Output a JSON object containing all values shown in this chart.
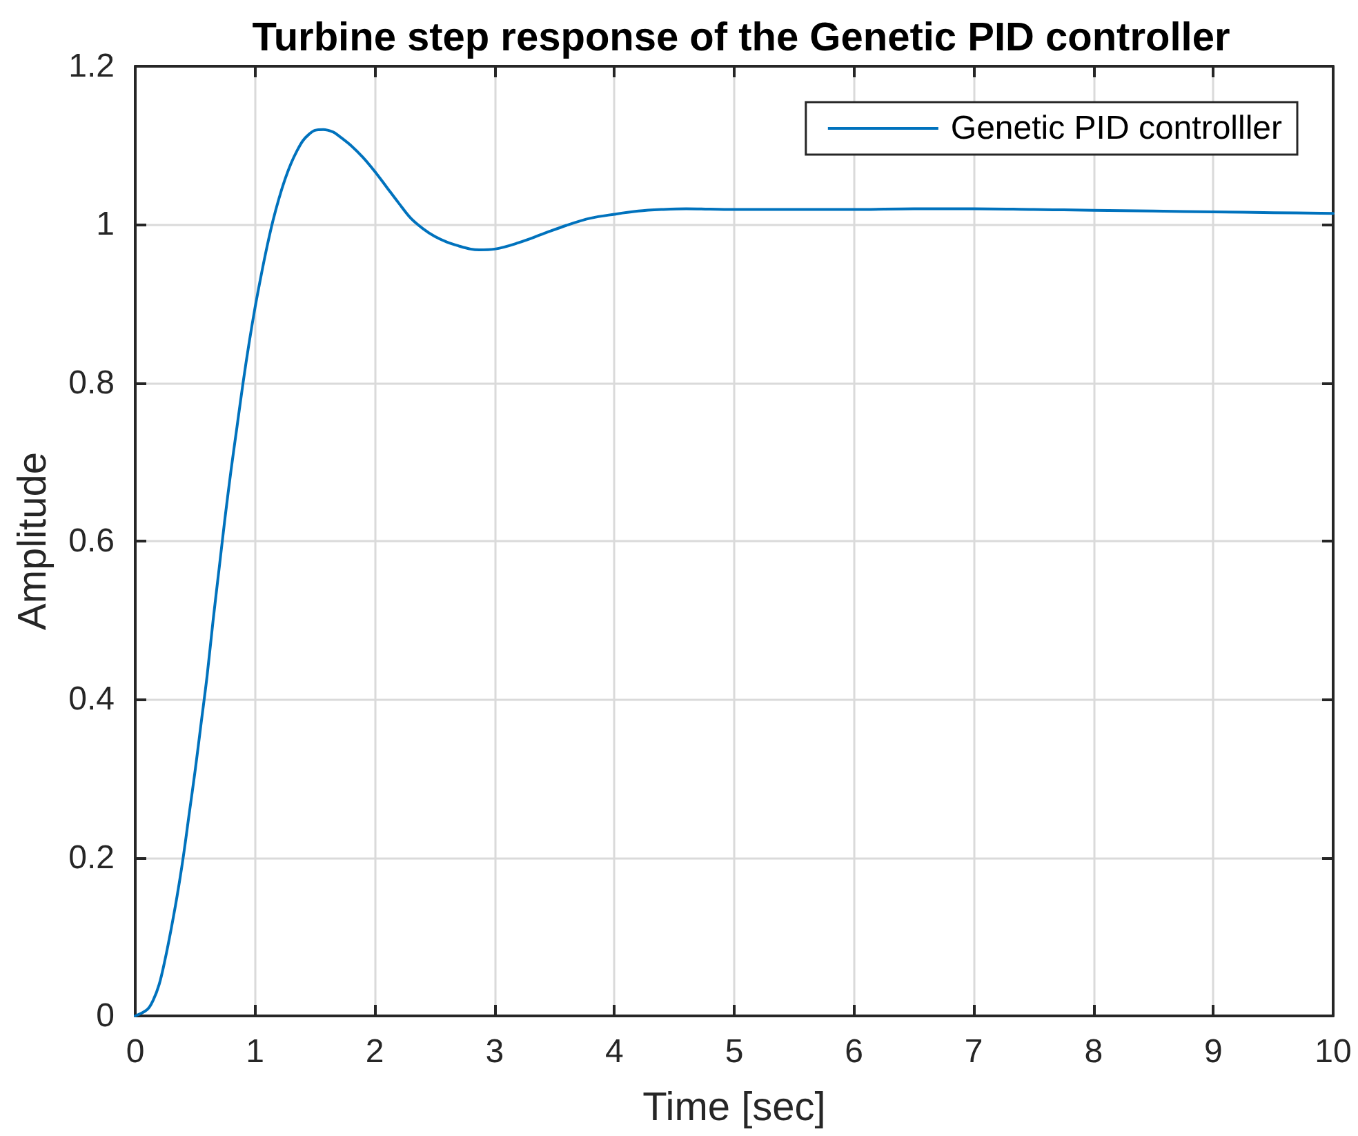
{
  "chart_data": {
    "type": "line",
    "title": "Turbine step response of the Genetic PID controller",
    "xlabel": "Time [sec]",
    "ylabel": "Amplitude",
    "x": [
      0,
      0.1,
      0.15,
      0.2,
      0.25,
      0.3,
      0.35,
      0.4,
      0.45,
      0.5,
      0.55,
      0.6,
      0.65,
      0.7,
      0.75,
      0.8,
      0.85,
      0.9,
      0.95,
      1,
      1.05,
      1.1,
      1.15,
      1.2,
      1.25,
      1.3,
      1.35,
      1.4,
      1.45,
      1.5,
      1.57,
      1.65,
      1.7,
      1.8,
      1.9,
      2,
      2.1,
      2.2,
      2.3,
      2.4,
      2.5,
      2.6,
      2.7,
      2.8,
      2.87,
      3,
      3.2,
      3.4,
      3.6,
      3.8,
      4,
      4.2,
      4.4,
      4.6,
      5,
      5.5,
      6,
      6.5,
      7,
      7.5,
      8,
      8.5,
      9,
      9.5,
      10
    ],
    "series": [
      {
        "name": "Genetic PID controlller",
        "color": "#0072bd",
        "values": [
          0,
          0.008,
          0.02,
          0.04,
          0.072,
          0.11,
          0.152,
          0.2,
          0.255,
          0.31,
          0.37,
          0.43,
          0.5,
          0.565,
          0.63,
          0.69,
          0.745,
          0.8,
          0.85,
          0.895,
          0.935,
          0.972,
          1.005,
          1.033,
          1.057,
          1.077,
          1.093,
          1.106,
          1.114,
          1.119,
          1.12,
          1.117,
          1.112,
          1.1,
          1.085,
          1.067,
          1.047,
          1.027,
          1.008,
          0.995,
          0.985,
          0.978,
          0.973,
          0.969,
          0.968,
          0.969,
          0.977,
          0.988,
          0.999,
          1.008,
          1.013,
          1.017,
          1.019,
          1.02,
          1.019,
          1.019,
          1.019,
          1.02,
          1.02,
          1.019,
          1.018,
          1.017,
          1.016,
          1.015,
          1.014
        ]
      }
    ],
    "xlim": [
      0,
      10
    ],
    "xticks": [
      0,
      1,
      2,
      3,
      4,
      5,
      6,
      7,
      8,
      9,
      10
    ],
    "ylim": [
      0,
      1.2
    ],
    "yticks": [
      0,
      0.2,
      0.4,
      0.6,
      0.8,
      1,
      1.2
    ],
    "grid": true,
    "legend": "top right",
    "marker": "none",
    "line_style": "solid"
  }
}
